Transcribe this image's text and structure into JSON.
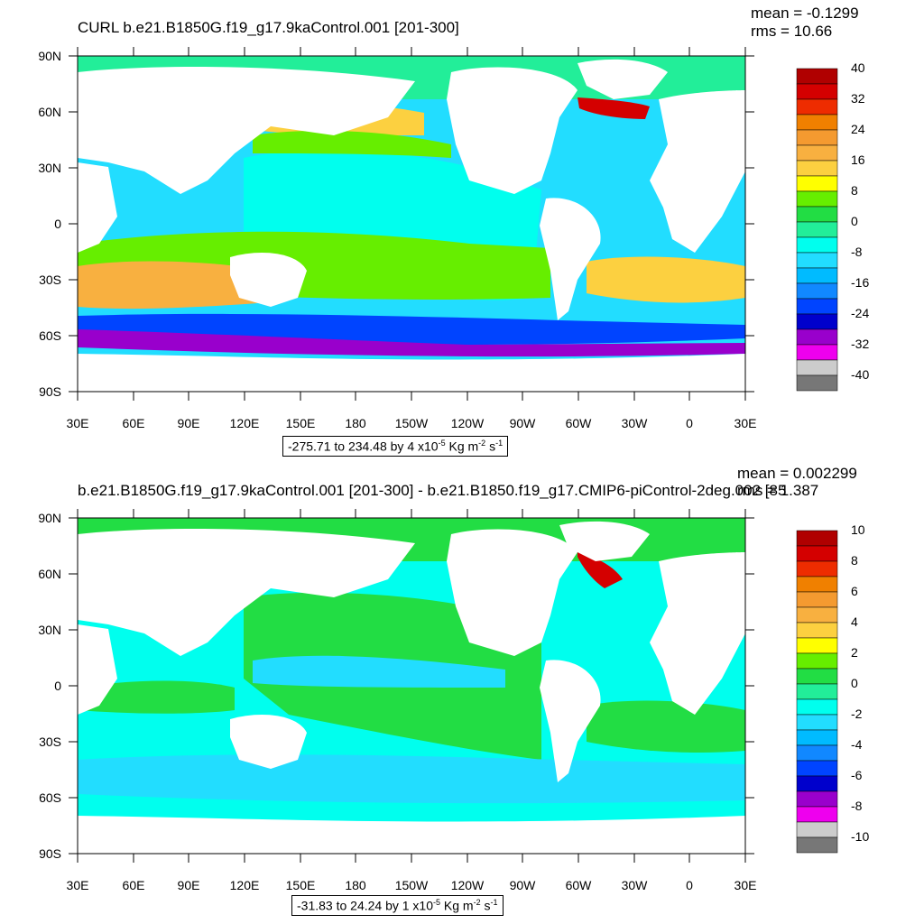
{
  "panels": [
    {
      "title": "CURL b.e21.B1850G.f19_g17.9kaControl.001 [201-300]",
      "mean_text": "mean = -0.1299",
      "rms_text": "rms = 10.66",
      "range_prefix": "-275.71 to 234.48 by 4 x10",
      "colorbar": {
        "labels": [
          "40",
          "32",
          "24",
          "16",
          "8",
          "0",
          "-8",
          "-16",
          "-24",
          "-32",
          "-40"
        ],
        "colors": [
          "#b00000",
          "#d40000",
          "#ee2c00",
          "#f08000",
          "#f49a30",
          "#f8b040",
          "#fcd040",
          "#ffff00",
          "#66ee00",
          "#22dd44",
          "#22ee99",
          "#00ffee",
          "#22ddff",
          "#00bbff",
          "#1188ff",
          "#0044ff",
          "#0000cc",
          "#9900cc",
          "#ee00ee",
          "#cccccc",
          "#777777"
        ]
      }
    },
    {
      "title": "b.e21.B1850G.f19_g17.9kaControl.001 [201-300] - b.e21.B1850.f19_g17.CMIP6-piControl-2deg.002 [85",
      "mean_text": "mean = 0.002299",
      "rms_text": "rms = 1.387",
      "range_prefix": "-31.83 to 24.24 by 1 x10",
      "colorbar": {
        "labels": [
          "10",
          "8",
          "6",
          "4",
          "2",
          "0",
          "-2",
          "-4",
          "-6",
          "-8",
          "-10"
        ],
        "colors": [
          "#b00000",
          "#d40000",
          "#ee2c00",
          "#f08000",
          "#f49a30",
          "#f8b040",
          "#fcd040",
          "#ffff00",
          "#66ee00",
          "#22dd44",
          "#22ee99",
          "#00ffee",
          "#22ddff",
          "#00bbff",
          "#1188ff",
          "#0044ff",
          "#0000cc",
          "#9900cc",
          "#ee00ee",
          "#cccccc",
          "#777777"
        ]
      }
    }
  ],
  "units": {
    "exp1": "-5",
    "kg": "Kg m",
    "exp2": "-2",
    "s": "s",
    "exp3": "-1"
  },
  "lat_labels": [
    "90N",
    "60N",
    "30N",
    "0",
    "30S",
    "60S",
    "90S"
  ],
  "lon_labels": [
    "30E",
    "60E",
    "90E",
    "120E",
    "150E",
    "180",
    "150W",
    "120W",
    "90W",
    "60W",
    "30W",
    "0",
    "30E"
  ]
}
